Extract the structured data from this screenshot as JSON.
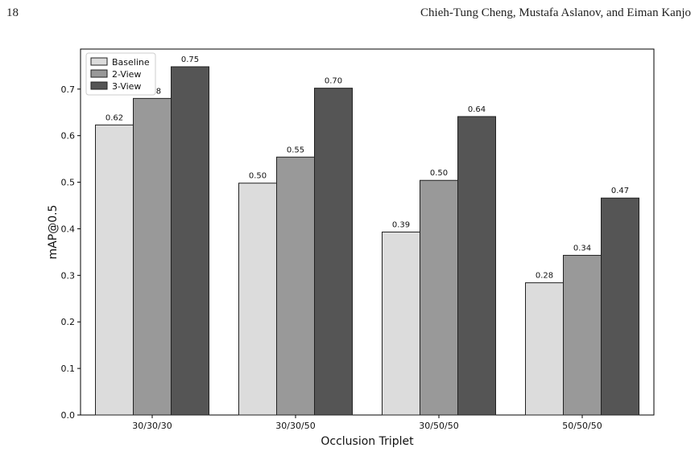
{
  "header": {
    "page_number": "18",
    "authors": "Chieh-Tung Cheng, Mustafa Aslanov, and Eiman Kanjo"
  },
  "chart_data": {
    "type": "bar",
    "title": "",
    "xlabel": "Occlusion Triplet",
    "ylabel": "mAP@0.5",
    "categories": [
      "30/30/30",
      "30/30/50",
      "30/50/50",
      "50/50/50"
    ],
    "series": [
      {
        "name": "Baseline",
        "values": [
          0.623,
          0.498,
          0.393,
          0.284
        ],
        "labels": [
          "0.62",
          "0.50",
          "0.39",
          "0.28"
        ],
        "color": "#dcdcdc"
      },
      {
        "name": "2-View",
        "values": [
          0.68,
          0.554,
          0.504,
          0.343
        ],
        "labels": [
          "0.68",
          "0.55",
          "0.50",
          "0.34"
        ],
        "color": "#999999"
      },
      {
        "name": "3-View",
        "values": [
          0.748,
          0.702,
          0.641,
          0.466
        ],
        "labels": [
          "0.75",
          "0.70",
          "0.64",
          "0.47"
        ],
        "color": "#555555"
      }
    ],
    "yticks": [
      "0.0",
      "0.1",
      "0.2",
      "0.3",
      "0.4",
      "0.5",
      "0.6",
      "0.7"
    ],
    "ylim": [
      0,
      0.786
    ],
    "legend_position": "top-left",
    "grid": false
  }
}
